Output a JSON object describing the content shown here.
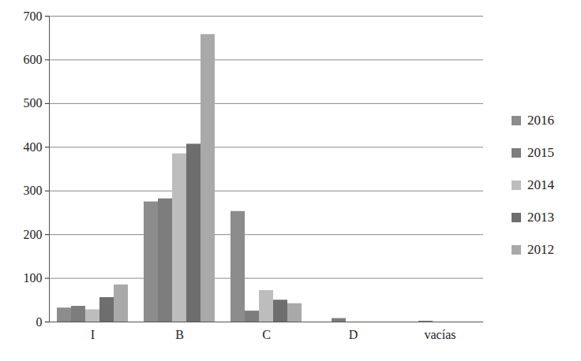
{
  "chart_data": {
    "type": "bar",
    "categories": [
      "I",
      "B",
      "C",
      "D",
      "vacías"
    ],
    "series": [
      {
        "name": "2016",
        "color": "#8c8c8c",
        "values": [
          32,
          275,
          253,
          0,
          0
        ]
      },
      {
        "name": "2015",
        "color": "#7d7d7d",
        "values": [
          36,
          282,
          25,
          8,
          2
        ]
      },
      {
        "name": "2014",
        "color": "#bdbdbd",
        "values": [
          28,
          385,
          72,
          0,
          0
        ]
      },
      {
        "name": "2013",
        "color": "#6e6e6e",
        "values": [
          56,
          407,
          50,
          0,
          0
        ]
      },
      {
        "name": "2012",
        "color": "#a9a9a9",
        "values": [
          85,
          658,
          42,
          0,
          0
        ]
      }
    ],
    "ylim": [
      0,
      700
    ],
    "yticks": [
      0,
      100,
      200,
      300,
      400,
      500,
      600,
      700
    ],
    "grid": true,
    "legend": "right"
  }
}
